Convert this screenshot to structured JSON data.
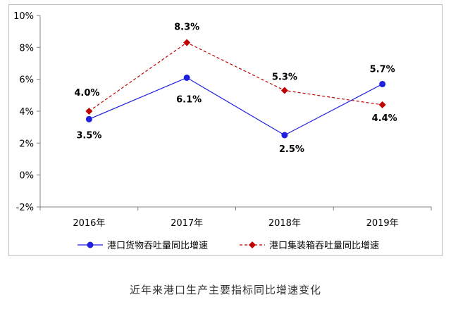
{
  "chart_data": {
    "type": "line",
    "categories": [
      "2016年",
      "2017年",
      "2018年",
      "2019年"
    ],
    "ylim": [
      -2,
      10
    ],
    "yticks": [
      -2,
      0,
      2,
      4,
      6,
      8,
      10
    ],
    "ytick_labels": [
      "-2%",
      "0%",
      "2%",
      "4%",
      "6%",
      "8%",
      "10%"
    ],
    "grid": false,
    "legend_position": "bottom",
    "series": [
      {
        "name": "港口货物吞吐量同比增速",
        "values": [
          3.5,
          6.1,
          2.5,
          5.7
        ],
        "labels": [
          "3.5%",
          "6.1%",
          "2.5%",
          "5.7%"
        ],
        "color": "#1f1fe0",
        "line_style": "solid",
        "marker": "circle"
      },
      {
        "name": "港口集装箱吞吐量同比增速",
        "values": [
          4.0,
          8.3,
          5.3,
          4.4
        ],
        "labels": [
          "4.0%",
          "8.3%",
          "5.3%",
          "4.4%"
        ],
        "color": "#c00000",
        "line_style": "dashed",
        "marker": "diamond"
      }
    ]
  },
  "caption": "近年来港口生产主要指标同比增速变化"
}
